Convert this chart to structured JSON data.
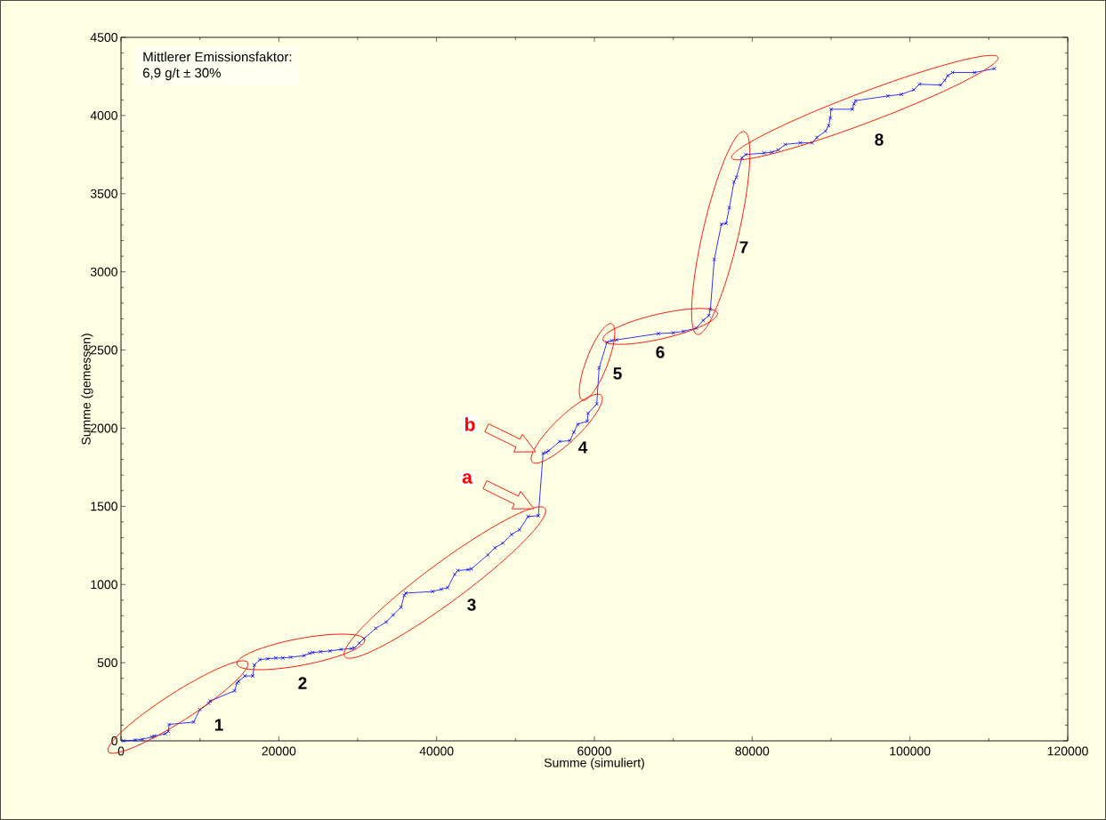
{
  "chart_data": {
    "type": "line",
    "xlabel": "Summe (simuliert)",
    "ylabel": "Summe (gemessen)",
    "xlim": [
      0,
      120000
    ],
    "ylim": [
      0,
      4500
    ],
    "xticks": [
      0,
      20000,
      40000,
      60000,
      80000,
      100000,
      120000
    ],
    "yticks": [
      0,
      500,
      1000,
      1500,
      2000,
      2500,
      3000,
      3500,
      4000,
      4500
    ],
    "grid": false,
    "marker": "cross",
    "line_style": "solid",
    "series": [
      {
        "color": "#0000ff",
        "x": [
          300,
          1800,
          2700,
          3900,
          4200,
          5600,
          6000,
          6100,
          9200,
          10000,
          11100,
          11300,
          14400,
          14700,
          14900,
          15700,
          16700,
          16900,
          17600,
          18600,
          19600,
          20500,
          21500,
          23200,
          23900,
          24300,
          25300,
          26500,
          27900,
          29200,
          29600,
          30200,
          30800,
          32300,
          33600,
          34500,
          35500,
          35900,
          36100,
          39500,
          40600,
          41400,
          42300,
          42700,
          44000,
          44400,
          46500,
          47400,
          48400,
          49500,
          50500,
          51600,
          52900,
          53500,
          53900,
          54200,
          55600,
          56900,
          57400,
          57900,
          59100,
          59200,
          60300,
          60600,
          61600,
          62200,
          62800,
          68100,
          70000,
          71300,
          72900,
          73800,
          74500,
          74700,
          75200,
          76100,
          76700,
          77100,
          77700,
          78000,
          78700,
          79200,
          81500,
          82500,
          83300,
          84200,
          86100,
          87600,
          88200,
          89300,
          89700,
          89900,
          90000,
          92700,
          92900,
          93100,
          97200,
          98900,
          100500,
          101200,
          103900,
          104400,
          104800,
          105400,
          108200,
          110700
        ],
        "values": [
          0,
          5,
          10,
          25,
          30,
          45,
          60,
          105,
          120,
          200,
          240,
          255,
          320,
          370,
          380,
          415,
          415,
          485,
          520,
          525,
          530,
          530,
          535,
          545,
          560,
          565,
          570,
          575,
          585,
          590,
          595,
          625,
          655,
          720,
          760,
          805,
          855,
          930,
          945,
          955,
          970,
          980,
          1065,
          1090,
          1095,
          1100,
          1190,
          1235,
          1265,
          1320,
          1350,
          1435,
          1440,
          1840,
          1845,
          1855,
          1915,
          1920,
          1975,
          2025,
          2045,
          2095,
          2155,
          2385,
          2550,
          2560,
          2565,
          2605,
          2610,
          2620,
          2640,
          2690,
          2720,
          2760,
          3080,
          3305,
          3310,
          3410,
          3575,
          3605,
          3730,
          3750,
          3760,
          3765,
          3780,
          3815,
          3825,
          3825,
          3860,
          3900,
          3935,
          3985,
          4040,
          4040,
          4075,
          4095,
          4125,
          4135,
          4165,
          4200,
          4195,
          4225,
          4255,
          4275,
          4275,
          4300
        ]
      }
    ],
    "annotations": [
      "Mittlerer Emissionsfaktor:",
      "6,9 g/t ± 30%",
      "1",
      "2",
      "3",
      "4",
      "5",
      "6",
      "7",
      "8",
      "a",
      "b"
    ]
  }
}
